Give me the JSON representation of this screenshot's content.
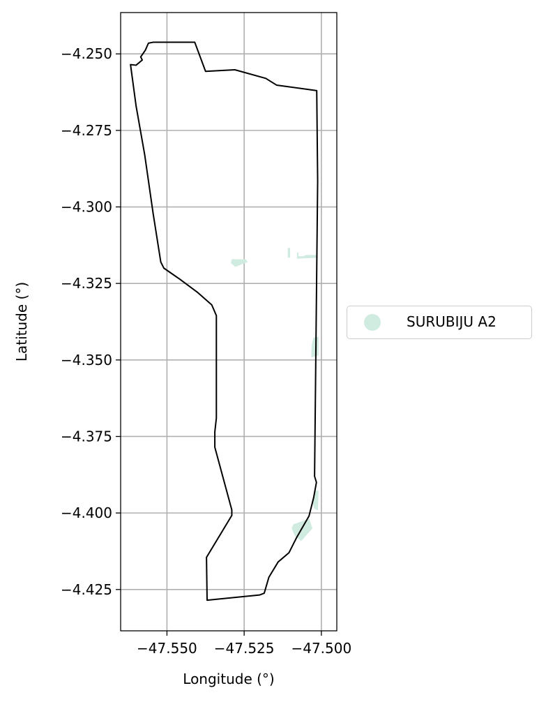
{
  "chart_data": {
    "type": "map",
    "xlabel": "Longitude (°)",
    "ylabel": "Latitude (°)",
    "xlim": [
      -47.565,
      -47.495
    ],
    "ylim": [
      -4.4385,
      -4.2365
    ],
    "x_ticks": [
      -47.55,
      -47.525,
      -47.5
    ],
    "x_tick_labels": [
      "−47.550",
      "−47.525",
      "−47.500"
    ],
    "y_ticks": [
      -4.25,
      -4.275,
      -4.3,
      -4.325,
      -4.35,
      -4.375,
      -4.4,
      -4.425
    ],
    "y_tick_labels": [
      "−4.250",
      "−4.275",
      "−4.300",
      "−4.325",
      "−4.350",
      "−4.375",
      "−4.400",
      "−4.425"
    ],
    "grid": true,
    "legend_placement": "outside-right",
    "boundary": {
      "color": "#000000",
      "points": [
        [
          -47.5618,
          -4.2535
        ],
        [
          -47.56,
          -4.2537
        ],
        [
          -47.558,
          -4.252
        ],
        [
          -47.5585,
          -4.251
        ],
        [
          -47.557,
          -4.2488
        ],
        [
          -47.556,
          -4.2465
        ],
        [
          -47.5545,
          -4.2462
        ],
        [
          -47.541,
          -4.2462
        ],
        [
          -47.5375,
          -4.2557
        ],
        [
          -47.528,
          -4.2552
        ],
        [
          -47.518,
          -4.258
        ],
        [
          -47.5145,
          -4.2602
        ],
        [
          -47.5015,
          -4.262
        ],
        [
          -47.5012,
          -4.2915
        ],
        [
          -47.5022,
          -4.388
        ],
        [
          -47.5016,
          -4.39
        ],
        [
          -47.5025,
          -4.395
        ],
        [
          -47.504,
          -4.401
        ],
        [
          -47.508,
          -4.408
        ],
        [
          -47.5105,
          -4.413
        ],
        [
          -47.514,
          -4.416
        ],
        [
          -47.517,
          -4.421
        ],
        [
          -47.5185,
          -4.4262
        ],
        [
          -47.52,
          -4.4268
        ],
        [
          -47.537,
          -4.4285
        ],
        [
          -47.5372,
          -4.4145
        ],
        [
          -47.529,
          -4.4008
        ],
        [
          -47.529,
          -4.399
        ],
        [
          -47.5345,
          -4.3785
        ],
        [
          -47.5345,
          -4.3735
        ],
        [
          -47.534,
          -4.369
        ],
        [
          -47.534,
          -4.3355
        ],
        [
          -47.5355,
          -4.332
        ],
        [
          -47.54,
          -4.328
        ],
        [
          -47.546,
          -4.3235
        ],
        [
          -47.551,
          -4.32
        ],
        [
          -47.552,
          -4.318
        ],
        [
          -47.5545,
          -4.302
        ],
        [
          -47.5572,
          -4.283
        ],
        [
          -47.56,
          -4.267
        ],
        [
          -47.5618,
          -4.2535
        ]
      ]
    },
    "series": [
      {
        "name": "SURUBIJU A2",
        "color": "#d0ebe0",
        "patches": [
          [
            [
              -47.529,
              -4.3172
            ],
            [
              -47.5245,
              -4.3172
            ],
            [
              -47.524,
              -4.318
            ],
            [
              -47.5262,
              -4.3188
            ],
            [
              -47.5278,
              -4.3195
            ],
            [
              -47.5292,
              -4.3183
            ]
          ],
          [
            [
              -47.5108,
              -4.3135
            ],
            [
              -47.5102,
              -4.3135
            ],
            [
              -47.5102,
              -4.3165
            ],
            [
              -47.5108,
              -4.3165
            ]
          ],
          [
            [
              -47.5078,
              -4.315
            ],
            [
              -47.5075,
              -4.315
            ],
            [
              -47.5075,
              -4.3168
            ],
            [
              -47.5078,
              -4.3168
            ]
          ],
          [
            [
              -47.5075,
              -4.3162
            ],
            [
              -47.5058,
              -4.3162
            ],
            [
              -47.505,
              -4.3158
            ],
            [
              -47.502,
              -4.3158
            ],
            [
              -47.5012,
              -4.3165
            ],
            [
              -47.5075,
              -4.3168
            ]
          ],
          [
            [
              -47.5025,
              -4.3428
            ],
            [
              -47.501,
              -4.3425
            ],
            [
              -47.501,
              -4.3485
            ],
            [
              -47.5032,
              -4.349
            ],
            [
              -47.503,
              -4.345
            ]
          ],
          [
            [
              -47.502,
              -4.3928
            ],
            [
              -47.501,
              -4.3928
            ],
            [
              -47.5012,
              -4.399
            ],
            [
              -47.5022,
              -4.3985
            ],
            [
              -47.503,
              -4.396
            ]
          ],
          [
            [
              -47.509,
              -4.4038
            ],
            [
              -47.504,
              -4.402
            ],
            [
              -47.503,
              -4.405
            ],
            [
              -47.5065,
              -4.409
            ],
            [
              -47.5085,
              -4.4075
            ],
            [
              -47.5095,
              -4.405
            ]
          ]
        ]
      }
    ]
  }
}
